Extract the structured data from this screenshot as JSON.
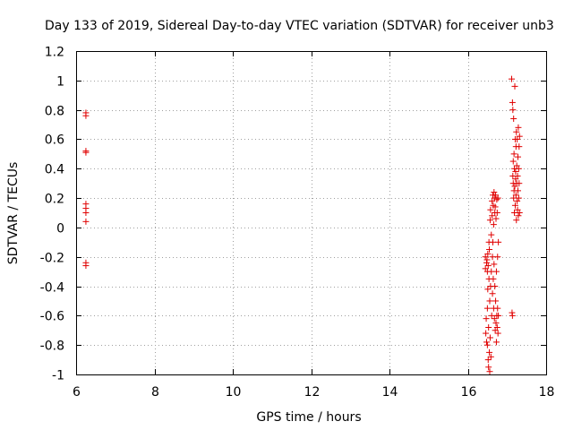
{
  "chart_data": {
    "type": "scatter",
    "title": "Day 133 of 2019, Sidereal Day-to-day VTEC variation (SDTVAR) for receiver unb3",
    "xlabel": "GPS time / hours",
    "ylabel": "SDTVAR / TECUs",
    "xlim": [
      6,
      18
    ],
    "ylim": [
      -1,
      1.2
    ],
    "xticks": [
      6,
      8,
      10,
      12,
      14,
      16,
      18
    ],
    "yticks": [
      -1,
      -0.8,
      -0.6,
      -0.4,
      -0.2,
      0,
      0.2,
      0.4,
      0.6,
      0.8,
      1,
      1.2
    ],
    "xtick_labels": [
      "6",
      "8",
      "10",
      "12",
      "14",
      "16",
      "18"
    ],
    "ytick_labels": [
      "-1",
      "-0.8",
      "-0.6",
      "-0.4",
      "-0.2",
      "0",
      "0.2",
      "0.4",
      "0.6",
      "0.8",
      "1",
      "1.2"
    ],
    "grid": true,
    "marker": "+",
    "color": "#e00000",
    "series": [
      {
        "name": "SDTVAR",
        "points": [
          [
            6.25,
            0.78
          ],
          [
            6.25,
            0.76
          ],
          [
            6.25,
            0.52
          ],
          [
            6.25,
            0.51
          ],
          [
            6.25,
            0.16
          ],
          [
            6.25,
            0.13
          ],
          [
            6.25,
            0.1
          ],
          [
            6.25,
            0.04
          ],
          [
            6.25,
            -0.24
          ],
          [
            6.25,
            -0.26
          ],
          [
            16.45,
            -0.2
          ],
          [
            16.45,
            -0.28
          ],
          [
            16.46,
            -0.72
          ],
          [
            16.47,
            -0.62
          ],
          [
            16.48,
            -0.24
          ],
          [
            16.48,
            -0.78
          ],
          [
            16.49,
            -0.22
          ],
          [
            16.5,
            -0.3
          ],
          [
            16.5,
            -0.8
          ],
          [
            16.5,
            -0.55
          ],
          [
            16.51,
            -0.18
          ],
          [
            16.51,
            -0.42
          ],
          [
            16.52,
            -0.9
          ],
          [
            16.52,
            -0.26
          ],
          [
            16.53,
            -0.68
          ],
          [
            16.53,
            -0.95
          ],
          [
            16.54,
            -0.1
          ],
          [
            16.54,
            -0.35
          ],
          [
            16.55,
            -0.85
          ],
          [
            16.55,
            -0.15
          ],
          [
            16.56,
            -0.98
          ],
          [
            16.56,
            -0.5
          ],
          [
            16.57,
            0.05
          ],
          [
            16.57,
            -0.75
          ],
          [
            16.58,
            0.12
          ],
          [
            16.58,
            -0.4
          ],
          [
            16.59,
            -0.88
          ],
          [
            16.6,
            -0.05
          ],
          [
            16.6,
            -0.3
          ],
          [
            16.61,
            -0.6
          ],
          [
            16.62,
            0.18
          ],
          [
            16.62,
            0.08
          ],
          [
            16.63,
            -0.2
          ],
          [
            16.63,
            -0.45
          ],
          [
            16.64,
            0.22
          ],
          [
            16.64,
            -0.1
          ],
          [
            16.65,
            0.15
          ],
          [
            16.65,
            -0.35
          ],
          [
            16.66,
            -0.55
          ],
          [
            16.66,
            0.02
          ],
          [
            16.67,
            0.24
          ],
          [
            16.67,
            -0.25
          ],
          [
            16.68,
            0.2
          ],
          [
            16.68,
            -0.62
          ],
          [
            16.69,
            0.1
          ],
          [
            16.69,
            -0.4
          ],
          [
            16.7,
            -0.7
          ],
          [
            16.7,
            0.14
          ],
          [
            16.71,
            -0.5
          ],
          [
            16.71,
            0.22
          ],
          [
            16.72,
            -0.65
          ],
          [
            16.72,
            0.06
          ],
          [
            16.73,
            -0.78
          ],
          [
            16.73,
            -0.3
          ],
          [
            16.74,
            0.19
          ],
          [
            16.74,
            -0.6
          ],
          [
            16.75,
            -0.68
          ],
          [
            16.75,
            0.1
          ],
          [
            16.76,
            -0.2
          ],
          [
            16.76,
            -0.55
          ],
          [
            16.77,
            0.2
          ],
          [
            16.77,
            -0.72
          ],
          [
            16.78,
            -0.1
          ],
          [
            16.78,
            -0.6
          ],
          [
            17.12,
            1.01
          ],
          [
            17.13,
            -0.58
          ],
          [
            17.14,
            -0.6
          ],
          [
            17.14,
            0.85
          ],
          [
            17.15,
            0.8
          ],
          [
            17.15,
            0.35
          ],
          [
            17.16,
            0.3
          ],
          [
            17.16,
            0.45
          ],
          [
            17.17,
            0.2
          ],
          [
            17.17,
            0.74
          ],
          [
            17.18,
            0.25
          ],
          [
            17.18,
            0.5
          ],
          [
            17.19,
            0.4
          ],
          [
            17.19,
            0.1
          ],
          [
            17.2,
            0.96
          ],
          [
            17.2,
            0.28
          ],
          [
            17.21,
            0.6
          ],
          [
            17.21,
            0.15
          ],
          [
            17.22,
            0.38
          ],
          [
            17.22,
            0.33
          ],
          [
            17.23,
            0.22
          ],
          [
            17.23,
            0.55
          ],
          [
            17.24,
            0.65
          ],
          [
            17.24,
            0.05
          ],
          [
            17.25,
            0.3
          ],
          [
            17.25,
            0.42
          ],
          [
            17.26,
            0.18
          ],
          [
            17.26,
            0.6
          ],
          [
            17.27,
            0.35
          ],
          [
            17.27,
            0.12
          ],
          [
            17.28,
            0.48
          ],
          [
            17.28,
            0.25
          ],
          [
            17.29,
            0.68
          ],
          [
            17.29,
            0.08
          ],
          [
            17.3,
            0.4
          ],
          [
            17.3,
            0.2
          ],
          [
            17.31,
            0.55
          ],
          [
            17.31,
            0.3
          ],
          [
            17.32,
            0.1
          ],
          [
            17.32,
            0.62
          ]
        ]
      }
    ]
  }
}
